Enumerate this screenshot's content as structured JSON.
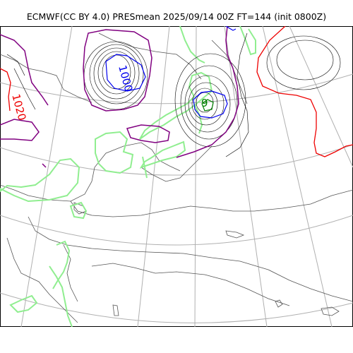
{
  "title": "ECMWF(CC BY 4.0) PRESmean 2025/09/14 00Z FT=144 (init 0800Z)",
  "colors": {
    "coast": "#555555",
    "graticule": "#b0b0b0",
    "isobar": "#000000",
    "isobar_low": "#0000ee",
    "isobar_high": "#ee0000",
    "isobar_mid": "#800080",
    "shade": "#90ee90",
    "low_center": "#008000"
  },
  "labels": {
    "low_1000": "1000",
    "high_1020": "1020",
    "low_center_value": "9"
  }
}
